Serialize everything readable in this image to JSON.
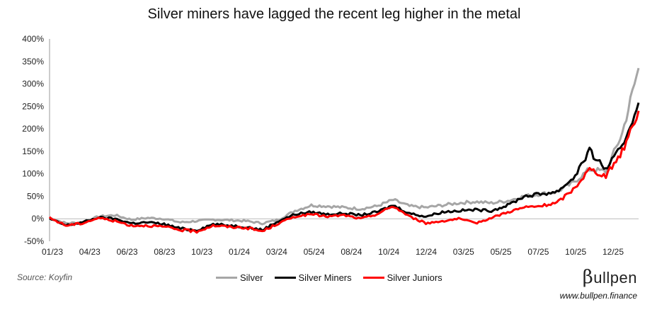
{
  "chart_data": {
    "type": "line",
    "title": "Silver miners have lagged the recent leg higher in the metal",
    "xlabel": "",
    "ylabel": "",
    "ylim": [
      -50,
      400
    ],
    "y_ticks": [
      "400%",
      "350%",
      "300%",
      "250%",
      "200%",
      "150%",
      "100%",
      "50%",
      "0%",
      "-50%"
    ],
    "y_tick_values": [
      400,
      350,
      300,
      250,
      200,
      150,
      100,
      50,
      0,
      -50
    ],
    "x_ticks": [
      "01/23",
      "04/23",
      "06/23",
      "08/23",
      "10/23",
      "01/24",
      "03/24",
      "05/24",
      "08/24",
      "10/24",
      "12/24",
      "03/25",
      "05/25",
      "07/25",
      "10/25",
      "12/25"
    ],
    "x_months": [
      "2023-01",
      "2023-02",
      "2023-03",
      "2023-04",
      "2023-05",
      "2023-06",
      "2023-07",
      "2023-08",
      "2023-09",
      "2023-10",
      "2023-11",
      "2023-12",
      "2024-01",
      "2024-02",
      "2024-03",
      "2024-04",
      "2024-05",
      "2024-06",
      "2024-07",
      "2024-08",
      "2024-09",
      "2024-10",
      "2024-11",
      "2024-12",
      "2025-01",
      "2025-02",
      "2025-03",
      "2025-04",
      "2025-05",
      "2025-06",
      "2025-07",
      "2025-08",
      "2025-09",
      "2025-10",
      "2025-11",
      "2025-12",
      "2026-01"
    ],
    "series": [
      {
        "name": "Silver",
        "color": "#a6a6a6",
        "values": [
          2,
          -10,
          -8,
          5,
          8,
          -2,
          2,
          0,
          -8,
          -5,
          -2,
          -3,
          -5,
          -10,
          -2,
          18,
          30,
          28,
          25,
          22,
          28,
          42,
          28,
          25,
          30,
          35,
          38,
          35,
          40,
          50,
          55,
          60,
          80,
          110,
          105,
          190,
          335
        ]
      },
      {
        "name": "Silver Miners",
        "color": "#000000",
        "values": [
          0,
          -15,
          -8,
          3,
          0,
          -10,
          -8,
          -12,
          -22,
          -25,
          -12,
          -15,
          -18,
          -25,
          -5,
          10,
          15,
          10,
          12,
          8,
          15,
          30,
          12,
          5,
          15,
          18,
          20,
          18,
          30,
          50,
          55,
          60,
          90,
          150,
          110,
          160,
          258
        ]
      },
      {
        "name": "Silver Juniors",
        "color": "#ff0000",
        "values": [
          2,
          -15,
          -10,
          2,
          -5,
          -15,
          -15,
          -18,
          -25,
          -28,
          -15,
          -18,
          -20,
          -28,
          -10,
          5,
          10,
          5,
          8,
          0,
          10,
          28,
          5,
          -10,
          -5,
          0,
          -10,
          2,
          15,
          25,
          28,
          35,
          65,
          110,
          95,
          150,
          240
        ]
      }
    ]
  },
  "source": "Source: Koyfin",
  "brand": {
    "b": "β",
    "rest": "ullpen"
  },
  "url": "www.bullpen.finance"
}
